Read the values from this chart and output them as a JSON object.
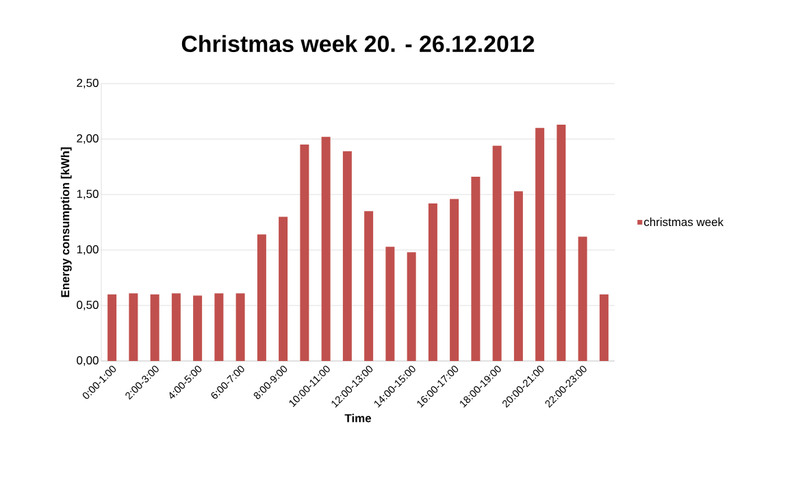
{
  "chart_data": {
    "type": "bar",
    "title": "Christmas week 20. - 26.12.2012",
    "xlabel": "Time",
    "ylabel": "Energy consumption [kWh]",
    "categories": [
      "0:00-1:00",
      null,
      "2:00-3:00",
      null,
      "4:00-5:00",
      null,
      "6:00-7:00",
      null,
      "8:00-9:00",
      null,
      "10:00-11:00",
      null,
      "12:00-13:00",
      null,
      "14:00-15:00",
      null,
      "16:00-17:00",
      null,
      "18:00-19:00",
      null,
      "20:00-21:00",
      null,
      "22:00-23:00",
      null
    ],
    "series": [
      {
        "name": "christmas week",
        "color": "#c0504d",
        "values": [
          0.6,
          0.61,
          0.6,
          0.61,
          0.59,
          0.61,
          0.61,
          1.14,
          1.3,
          1.95,
          2.02,
          1.89,
          1.35,
          1.03,
          0.98,
          1.42,
          1.46,
          1.66,
          1.94,
          1.53,
          2.1,
          2.13,
          1.12,
          0.6
        ]
      }
    ],
    "ylim": [
      0,
      2.5
    ],
    "yticks": [
      {
        "value": 0,
        "label": "0,00"
      },
      {
        "value": 0.5,
        "label": "0,50"
      },
      {
        "value": 1,
        "label": "1,00"
      },
      {
        "value": 1.5,
        "label": "1,50"
      },
      {
        "value": 2,
        "label": "2,00"
      },
      {
        "value": 2.5,
        "label": "2,50"
      }
    ],
    "grid": "y",
    "legend": "right"
  }
}
